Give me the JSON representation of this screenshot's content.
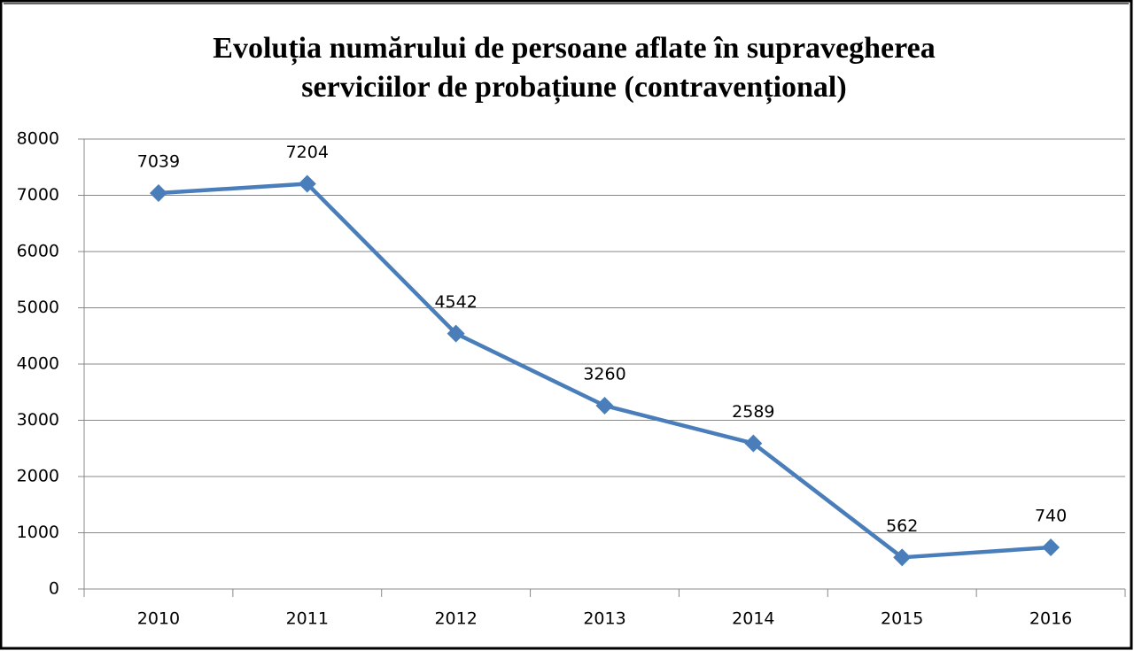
{
  "chart_data": {
    "type": "line",
    "title": [
      "Evoluția numărului de persoane aflate în supravegherea",
      "serviciilor de probațiune (contravențional)"
    ],
    "categories": [
      "2010",
      "2011",
      "2012",
      "2013",
      "2014",
      "2015",
      "2016"
    ],
    "values": [
      7039,
      7204,
      4542,
      3260,
      2589,
      562,
      740
    ],
    "color": "#4a7ebb",
    "ylim": [
      0,
      8000
    ],
    "yticks": [
      0,
      1000,
      2000,
      3000,
      4000,
      5000,
      6000,
      7000,
      8000
    ],
    "grid": true
  }
}
